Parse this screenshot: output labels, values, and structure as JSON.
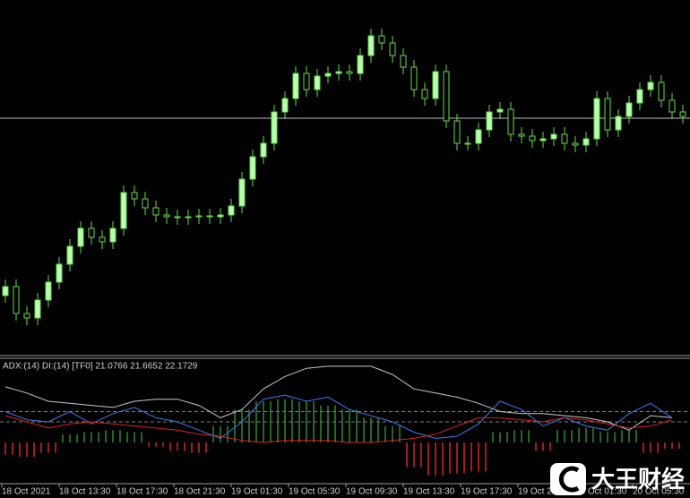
{
  "chart_data": [
    {
      "type": "candlestick",
      "ylim": [
        0,
        396
      ],
      "bull_color": "#b8ffb0",
      "bear_color": "#000000",
      "wick_color": "#66dd44",
      "hline": 264,
      "hline_color": "#c0c0c0",
      "x_labels": [
        "18 Oct 2021",
        "18 Oct 13:30",
        "18 Oct 17:30",
        "18 Oct 21:30",
        "19 Oct 01:30",
        "19 Oct 05:30",
        "19 Oct 09:30",
        "19 Oct 13:30",
        "19 Oct 17:30",
        "19 Oct 21:30",
        "20 Oct 01:30",
        "20 Oct 05:30"
      ],
      "open": [
        66,
        76,
        46,
        41,
        61,
        81,
        101,
        121,
        141,
        131,
        126,
        141,
        181,
        174,
        164,
        156,
        154,
        153,
        154,
        155,
        154,
        156,
        166,
        196,
        221,
        236,
        271,
        286,
        314,
        296,
        311,
        314,
        316,
        314,
        334,
        356,
        348,
        334,
        321,
        296,
        286,
        316,
        261,
        236,
        236,
        251,
        271,
        274,
        246,
        244,
        239,
        241,
        246,
        236,
        234,
        241,
        286,
        251,
        266,
        281,
        296,
        304,
        284,
        271
      ],
      "high": [
        84,
        84,
        54,
        69,
        89,
        109,
        129,
        149,
        149,
        139,
        149,
        189,
        189,
        182,
        172,
        164,
        162,
        162,
        163,
        163,
        164,
        174,
        204,
        229,
        244,
        279,
        294,
        322,
        322,
        319,
        322,
        324,
        324,
        342,
        364,
        364,
        356,
        342,
        329,
        304,
        324,
        324,
        269,
        244,
        259,
        279,
        282,
        282,
        254,
        252,
        249,
        254,
        254,
        244,
        249,
        294,
        294,
        274,
        289,
        304,
        312,
        312,
        292,
        279
      ],
      "low": [
        58,
        38,
        33,
        33,
        53,
        73,
        93,
        113,
        123,
        118,
        118,
        133,
        166,
        156,
        148,
        146,
        145,
        145,
        146,
        146,
        146,
        148,
        158,
        188,
        213,
        228,
        263,
        278,
        288,
        288,
        303,
        306,
        306,
        306,
        326,
        340,
        326,
        313,
        288,
        278,
        278,
        253,
        228,
        228,
        228,
        243,
        263,
        238,
        236,
        231,
        231,
        233,
        228,
        226,
        226,
        233,
        243,
        243,
        258,
        273,
        288,
        276,
        263,
        258
      ],
      "close": [
        76,
        46,
        41,
        61,
        81,
        101,
        121,
        141,
        131,
        126,
        141,
        181,
        174,
        164,
        156,
        154,
        153,
        154,
        155,
        154,
        156,
        166,
        196,
        221,
        236,
        271,
        286,
        314,
        296,
        311,
        314,
        316,
        314,
        334,
        356,
        348,
        334,
        321,
        296,
        286,
        316,
        261,
        236,
        236,
        251,
        271,
        274,
        246,
        244,
        239,
        241,
        246,
        236,
        234,
        241,
        286,
        251,
        266,
        281,
        296,
        304,
        284,
        271,
        266
      ]
    },
    {
      "type": "line",
      "title": "ADX:(14) DI:(14) [TF0] 21.0766 21.6652 22.1729",
      "ylim": [
        -10,
        50
      ],
      "levels": [
        20,
        25
      ],
      "level_color": "#808080",
      "hist_base": 10,
      "hist_up_color": "#2e8b2e",
      "hist_down_color": "#dd2222",
      "histogram": [
        4,
        3,
        5,
        14,
        15,
        16,
        15,
        8,
        6,
        5,
        18,
        26,
        30,
        31,
        30,
        28,
        26,
        22,
        18,
        -2,
        -6,
        -5,
        -4,
        15,
        16,
        6,
        16,
        17,
        15,
        16,
        5,
        7
      ],
      "series": [
        {
          "name": "ADX",
          "color": "#c8c8c8",
          "values": [
            37,
            34,
            30,
            29,
            28,
            27,
            30,
            31,
            31,
            28,
            22,
            26,
            36,
            42,
            46,
            47,
            47,
            47,
            43,
            36,
            34,
            32,
            29,
            25,
            24,
            24,
            23,
            22,
            20,
            16,
            23,
            22
          ]
        },
        {
          "name": "+DI",
          "color": "#3a7ff0",
          "values": [
            25,
            21,
            20,
            25,
            19,
            24,
            27,
            22,
            20,
            16,
            12,
            20,
            31,
            33,
            30,
            32,
            26,
            23,
            20,
            15,
            12,
            13,
            19,
            30,
            26,
            18,
            22,
            18,
            16,
            24,
            29,
            22
          ]
        },
        {
          "name": "-DI",
          "color": "#e02020",
          "values": [
            23,
            20,
            17,
            19,
            20,
            19,
            18,
            17,
            16,
            14,
            13,
            11,
            10,
            11,
            11,
            11,
            10,
            10,
            11,
            12,
            14,
            18,
            22,
            22,
            21,
            20,
            22,
            21,
            19,
            17,
            18,
            21
          ]
        }
      ]
    }
  ],
  "watermark": "大王财经"
}
